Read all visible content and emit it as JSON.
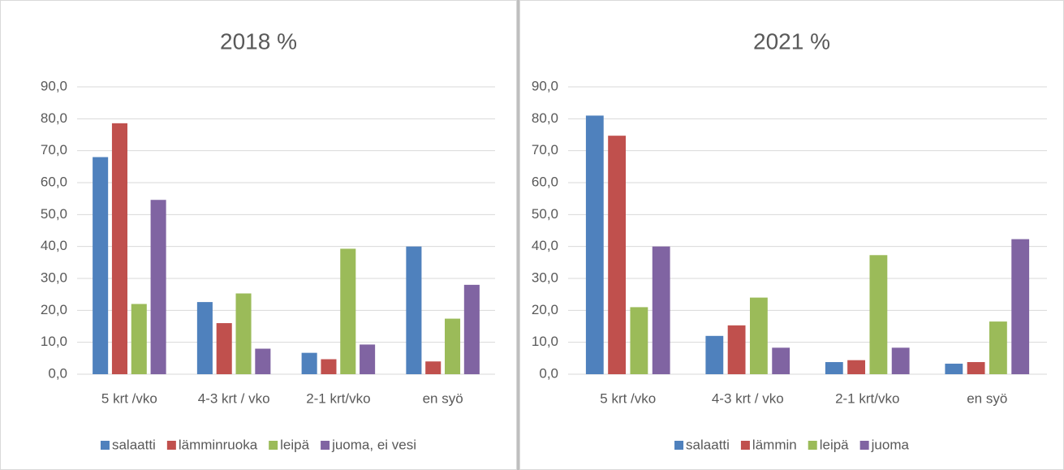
{
  "chart_data": [
    {
      "type": "bar",
      "title": "2018 %",
      "categories": [
        "5 krt /vko",
        "4-3 krt / vko",
        "2-1 krt/vko",
        "en syö"
      ],
      "series": [
        {
          "name": "salaatti",
          "color": "#4f81bd",
          "values": [
            68.0,
            22.6,
            6.7,
            40.0
          ]
        },
        {
          "name": "lämminruoka",
          "color": "#c0504d",
          "values": [
            78.6,
            16.0,
            4.7,
            4.0
          ]
        },
        {
          "name": "leipä",
          "color": "#9bbb59",
          "values": [
            22.0,
            25.3,
            39.3,
            17.4
          ]
        },
        {
          "name": "juoma, ei vesi",
          "color": "#8064a2",
          "values": [
            54.6,
            8.0,
            9.3,
            28.0
          ]
        }
      ],
      "ylim": [
        0,
        90
      ],
      "yticks": [
        {
          "value": 0,
          "label": "0,0"
        },
        {
          "value": 10,
          "label": "10,0"
        },
        {
          "value": 20,
          "label": "20,0"
        },
        {
          "value": 30,
          "label": "30,0"
        },
        {
          "value": 40,
          "label": "40,0"
        },
        {
          "value": 50,
          "label": "50,0"
        },
        {
          "value": 60,
          "label": "60,0"
        },
        {
          "value": 70,
          "label": "70,0"
        },
        {
          "value": 80,
          "label": "80,0"
        },
        {
          "value": 90,
          "label": "90,0"
        }
      ],
      "grid": true,
      "legend": "bottom"
    },
    {
      "type": "bar",
      "title": "2021 %",
      "categories": [
        "5 krt /vko",
        "4-3 krt / vko",
        "2-1 krt/vko",
        "en syö"
      ],
      "series": [
        {
          "name": "salaatti",
          "color": "#4f81bd",
          "values": [
            81.0,
            12.0,
            3.8,
            3.3
          ]
        },
        {
          "name": "lämmin",
          "color": "#c0504d",
          "values": [
            74.7,
            15.3,
            4.4,
            3.8
          ]
        },
        {
          "name": "leipä",
          "color": "#9bbb59",
          "values": [
            21.0,
            24.0,
            37.3,
            16.5
          ]
        },
        {
          "name": "juoma",
          "color": "#8064a2",
          "values": [
            40.0,
            8.3,
            8.3,
            42.3
          ]
        }
      ],
      "ylim": [
        0,
        90
      ],
      "yticks": [
        {
          "value": 0,
          "label": "0,0"
        },
        {
          "value": 10,
          "label": "10,0"
        },
        {
          "value": 20,
          "label": "20,0"
        },
        {
          "value": 30,
          "label": "30,0"
        },
        {
          "value": 40,
          "label": "40,0"
        },
        {
          "value": 50,
          "label": "50,0"
        },
        {
          "value": 60,
          "label": "60,0"
        },
        {
          "value": 70,
          "label": "70,0"
        },
        {
          "value": 80,
          "label": "80,0"
        },
        {
          "value": 90,
          "label": "90,0"
        }
      ],
      "grid": true,
      "legend": "bottom"
    }
  ]
}
